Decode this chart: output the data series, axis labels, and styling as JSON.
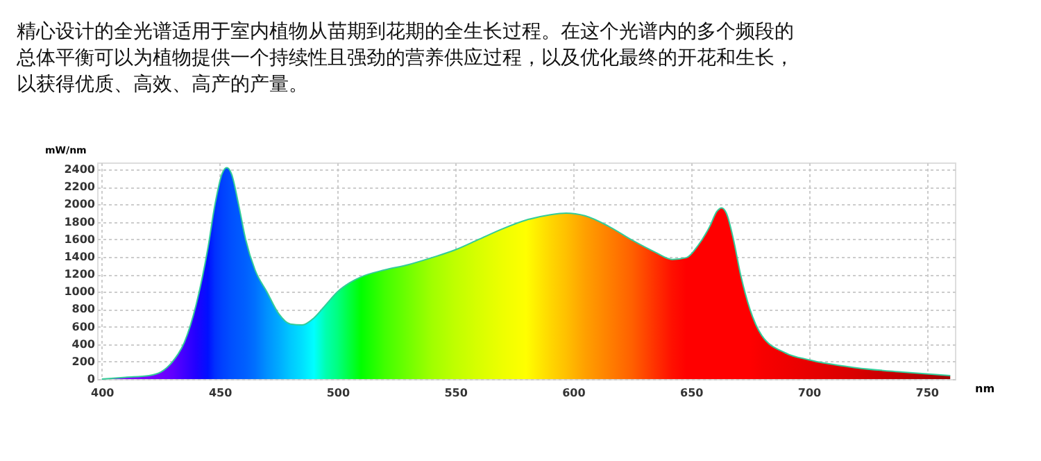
{
  "chart_data": {
    "type": "area",
    "title": [
      "精心设计的全光谱适用于室内植物从苗期到花期的全生长过程。在这个光谱内的多个频段的",
      "总体平衡可以为植物提供一个持续性且强劲的营养供应过程，以及优化最终的开花和生长，",
      "以获得优质、高效、高产的产量。"
    ],
    "xlabel": "nm",
    "ylabel": "mW/nm",
    "x": [
      400,
      410,
      420,
      425,
      430,
      435,
      440,
      445,
      448,
      451,
      453,
      455,
      458,
      461,
      465,
      470,
      475,
      480,
      485,
      490,
      495,
      500,
      505,
      510,
      520,
      530,
      540,
      550,
      560,
      570,
      580,
      590,
      597,
      605,
      615,
      625,
      635,
      642,
      648,
      653,
      658,
      661,
      663,
      665,
      668,
      671,
      675,
      680,
      690,
      700,
      720,
      740,
      760
    ],
    "values": [
      0,
      20,
      40,
      80,
      200,
      420,
      850,
      1500,
      2000,
      2350,
      2420,
      2350,
      2000,
      1600,
      1250,
      1000,
      750,
      630,
      620,
      700,
      850,
      1000,
      1100,
      1170,
      1250,
      1310,
      1390,
      1480,
      1600,
      1720,
      1820,
      1880,
      1900,
      1870,
      1750,
      1590,
      1450,
      1370,
      1390,
      1530,
      1750,
      1920,
      1960,
      1900,
      1600,
      1200,
      800,
      500,
      300,
      220,
      130,
      80,
      40
    ],
    "colors": [
      "#8a00ff",
      "#8000ff",
      "#7a00ff",
      "#7000ff",
      "#6000ff",
      "#4000ff",
      "#2000ff",
      "#0010ff",
      "#0030ff",
      "#0040ff",
      "#0048ff",
      "#0050ff",
      "#0058ff",
      "#0060ff",
      "#0070ff",
      "#0090ff",
      "#00aaff",
      "#00c8ff",
      "#00e0ff",
      "#00ffff",
      "#00ffb0",
      "#00ff80",
      "#00ff40",
      "#00ff00",
      "#40ff00",
      "#70ff00",
      "#a0ff00",
      "#c0ff00",
      "#d8ff00",
      "#eeff00",
      "#ffff00",
      "#ffd800",
      "#ffc000",
      "#ffa000",
      "#ff8000",
      "#ff6000",
      "#ff3000",
      "#ff1000",
      "#ff0000",
      "#ff0000",
      "#ff0000",
      "#ff0000",
      "#ff0000",
      "#ff0000",
      "#ff0000",
      "#ff0000",
      "#ff0000",
      "#f80000",
      "#f00000",
      "#e80000",
      "#d80000",
      "#c00000",
      "#a00000"
    ],
    "xlim": [
      398,
      762
    ],
    "xticks": [
      400,
      450,
      500,
      550,
      600,
      650,
      700,
      750
    ],
    "ylim": [
      0,
      2480
    ],
    "yticks": [
      0,
      200,
      400,
      600,
      800,
      1000,
      1200,
      1400,
      1600,
      1800,
      2000,
      2200,
      2400
    ],
    "grid": true
  }
}
